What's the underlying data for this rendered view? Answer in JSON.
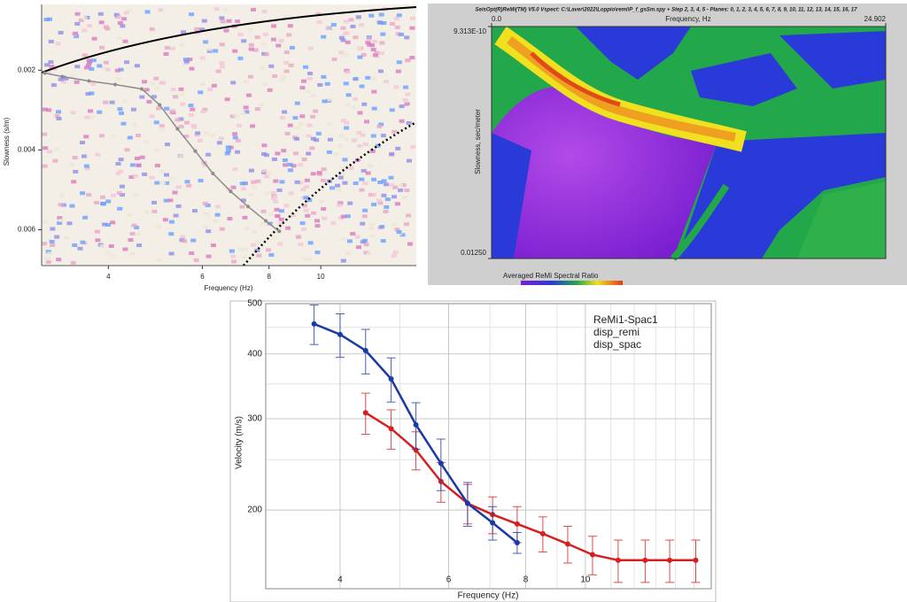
{
  "chart_data": [
    {
      "type": "line",
      "xlabel": "Frequency (Hz)",
      "ylabel": "Slowness (s/m)",
      "xscale": "log",
      "xlim": [
        3.0,
        15.1
      ],
      "ylim": [
        0.00035,
        0.0069
      ],
      "y_reversed": true,
      "xticks": [
        4,
        6,
        8,
        10
      ],
      "yticks": [
        0.002,
        0.004,
        0.006
      ],
      "x": [
        3.04,
        3.28,
        3.68,
        4.12,
        4.62,
        4.99,
        5.39,
        5.82,
        6.28,
        6.78,
        7.31,
        7.89,
        8.36
      ],
      "series": [
        {
          "color": "#8c8c8c",
          "values": [
            0.00207,
            0.00216,
            0.00227,
            0.00236,
            0.00247,
            0.00287,
            0.00347,
            0.00403,
            0.00459,
            0.00504,
            0.00542,
            0.00578,
            0.00604
          ]
        }
      ]
    },
    {
      "type": "heatmap",
      "title": "SeisOpt(R)ReMi(TM) V5.0 Vspect: C:\\Laver\\2022\\Loppio\\remi\\P_f_gsSm.spy + Step 2, 3, 4, 5 - Planes: 0, 1, 2, 3, 4, 5, 6, 7, 8, 9, 10, 11, 12, 13, 14, 15, 16, 17",
      "xlabel": "Frequency, Hz",
      "ylabel": "Slowness, sec/meter",
      "colorbar_label": "Averaged ReMi Spectral Ratio",
      "xlim": [
        0,
        24.902
      ],
      "ylim": [
        9.313e-10,
        0.0125
      ],
      "y_reversed": true,
      "xticks": [
        {
          "value": 0,
          "label": "0.0"
        },
        24.902
      ],
      "yticks": [
        {
          "value": 9.313e-10,
          "label": "9.313E-10"
        },
        {
          "value": 0.0125,
          "label": "0.01250"
        }
      ]
    },
    {
      "type": "line",
      "xlabel": "Frequency (Hz)",
      "ylabel": "Velocity (m/s)",
      "legend_title": "ReMi1-Spac1",
      "xscale": "log",
      "yscale": "log",
      "xlim": [
        3.03,
        16
      ],
      "ylim": [
        141,
        500
      ],
      "grid": true,
      "xticks": [
        4,
        6,
        8,
        10
      ],
      "yticks": [
        200,
        300,
        400,
        500
      ],
      "xminorticks": [
        5,
        7,
        9,
        11,
        12,
        13,
        14,
        15
      ],
      "yminorticks": [
        250,
        350,
        450
      ],
      "x": [
        3.63,
        4.0,
        4.4,
        4.84,
        5.31,
        5.83,
        6.44,
        7.07,
        7.75,
        8.53,
        9.36,
        10.27,
        11.3,
        12.5,
        13.7,
        15.1
      ],
      "series": [
        {
          "name": "disp_remi",
          "color": "#d42020",
          "values": [
            null,
            null,
            308,
            287,
            261,
            227,
            206,
            196,
            188,
            180,
            172,
            164,
            160,
            160,
            160,
            160
          ],
          "errors": [
            null,
            null,
            28,
            25,
            22,
            20,
            18,
            16,
            15,
            14,
            14,
            14,
            15,
            15,
            15,
            15
          ]
        },
        {
          "name": "disp_spac",
          "color": "#1a3aa8",
          "values": [
            457,
            436,
            406,
            358,
            292,
            246,
            206,
            189,
            173,
            null,
            null,
            null,
            null,
            null,
            null,
            null
          ],
          "errors": [
            40,
            42,
            40,
            35,
            30,
            28,
            20,
            14,
            8,
            null,
            null,
            null,
            null,
            null,
            null,
            null
          ]
        }
      ]
    }
  ]
}
